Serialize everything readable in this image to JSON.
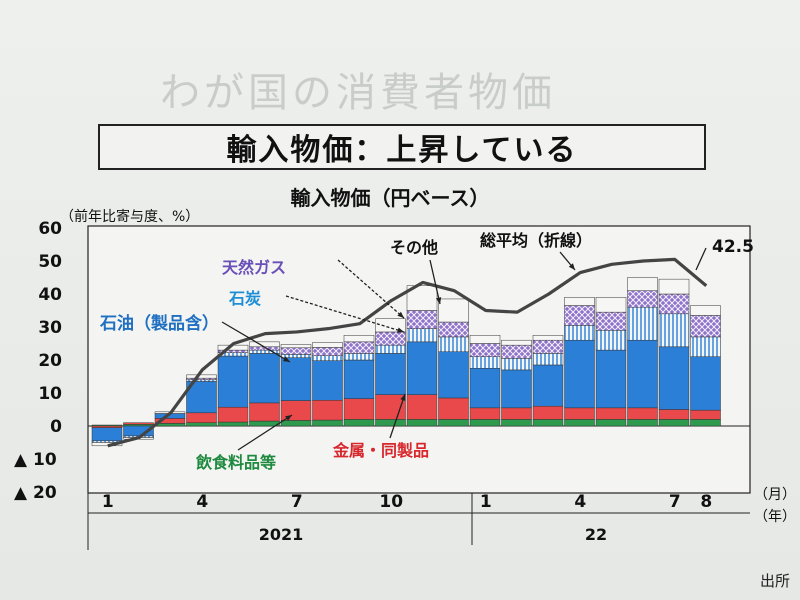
{
  "page": {
    "background_heading": "わが国の消費者物価",
    "box_title": "輸入物価：上昇している",
    "source_label": "出所"
  },
  "chart_data": {
    "type": "bar",
    "title": "輸入物価（円ベース）",
    "ylabel": "（前年比寄与度、%）",
    "xlabel_month": "（月）",
    "xlabel_year": "（年）",
    "ylim": [
      -20,
      60
    ],
    "yticks": [
      {
        "value": 60,
        "label": "60"
      },
      {
        "value": 50,
        "label": "50"
      },
      {
        "value": 40,
        "label": "40"
      },
      {
        "value": 30,
        "label": "30"
      },
      {
        "value": 20,
        "label": "20"
      },
      {
        "value": 10,
        "label": "10"
      },
      {
        "value": 0,
        "label": "0"
      },
      {
        "value": -10,
        "label": "▲ 10"
      },
      {
        "value": -20,
        "label": "▲ 20"
      }
    ],
    "month_ticks": [
      {
        "index": 0,
        "label": "1"
      },
      {
        "index": 3,
        "label": "4"
      },
      {
        "index": 6,
        "label": "7"
      },
      {
        "index": 9,
        "label": "10"
      },
      {
        "index": 12,
        "label": "1"
      },
      {
        "index": 15,
        "label": "4"
      },
      {
        "index": 18,
        "label": "7"
      },
      {
        "index": 19,
        "label": "8"
      }
    ],
    "years": [
      {
        "label": "2021",
        "start": 0,
        "end": 11
      },
      {
        "label": "22",
        "start": 12,
        "end": 19
      }
    ],
    "series": [
      {
        "name": "飲食料品等",
        "color": "#2e9a4e",
        "values": [
          0.3,
          0.5,
          0.8,
          1.0,
          1.2,
          1.5,
          1.7,
          1.8,
          2.0,
          2.0,
          2.0,
          2.0,
          2.0,
          2.0,
          2.0,
          2.0,
          2.0,
          2.0,
          2.0,
          2.0
        ]
      },
      {
        "name": "金属・同製品",
        "color": "#e9494b",
        "values": [
          -0.5,
          0.5,
          1.5,
          3.0,
          4.5,
          5.5,
          6.0,
          6.0,
          6.3,
          7.5,
          7.5,
          6.5,
          3.5,
          3.5,
          4.0,
          3.5,
          3.5,
          3.5,
          3.0,
          2.8
        ]
      },
      {
        "name": "石油（製品含）",
        "color": "#2b7fd6",
        "values": [
          -4.0,
          -3.0,
          1.5,
          9.5,
          15.5,
          15.0,
          13.0,
          12.0,
          11.7,
          12.5,
          16.0,
          14.0,
          12.0,
          11.5,
          12.5,
          20.5,
          17.5,
          20.5,
          19.0,
          16.2
        ]
      },
      {
        "name": "石炭",
        "color": "#f2f2f2",
        "values": [
          -0.5,
          -0.5,
          0.0,
          0.5,
          1.0,
          1.0,
          1.0,
          1.5,
          2.0,
          2.5,
          4.0,
          4.5,
          3.5,
          3.5,
          3.5,
          4.5,
          6.0,
          10.0,
          10.0,
          6.0
        ]
      },
      {
        "name": "天然ガス",
        "color": "#9a7fd0",
        "values": [
          0.0,
          0.0,
          0.0,
          0.5,
          0.8,
          1.0,
          2.0,
          2.5,
          3.5,
          4.0,
          5.5,
          4.5,
          4.0,
          4.0,
          4.0,
          6.0,
          5.5,
          5.0,
          6.0,
          6.5
        ]
      },
      {
        "name": "その他",
        "color": "#f6f6f4",
        "values": [
          -1.0,
          -0.5,
          0.5,
          1.0,
          1.5,
          1.5,
          1.0,
          1.5,
          2.0,
          4.0,
          7.5,
          7.0,
          2.5,
          1.5,
          1.5,
          2.5,
          4.5,
          4.0,
          4.5,
          3.0
        ]
      }
    ],
    "line_series": {
      "name": "総平均（折線）",
      "values": [
        -6.0,
        -3.5,
        4.0,
        17.0,
        25.0,
        28.0,
        28.5,
        29.5,
        31.0,
        38.0,
        43.5,
        41.0,
        35.0,
        34.5,
        40.0,
        46.5,
        49.0,
        50.0,
        50.5,
        42.5
      ]
    },
    "annotations": [
      {
        "text": "42.5"
      }
    ],
    "grid": false,
    "legend": "inline-labels"
  }
}
